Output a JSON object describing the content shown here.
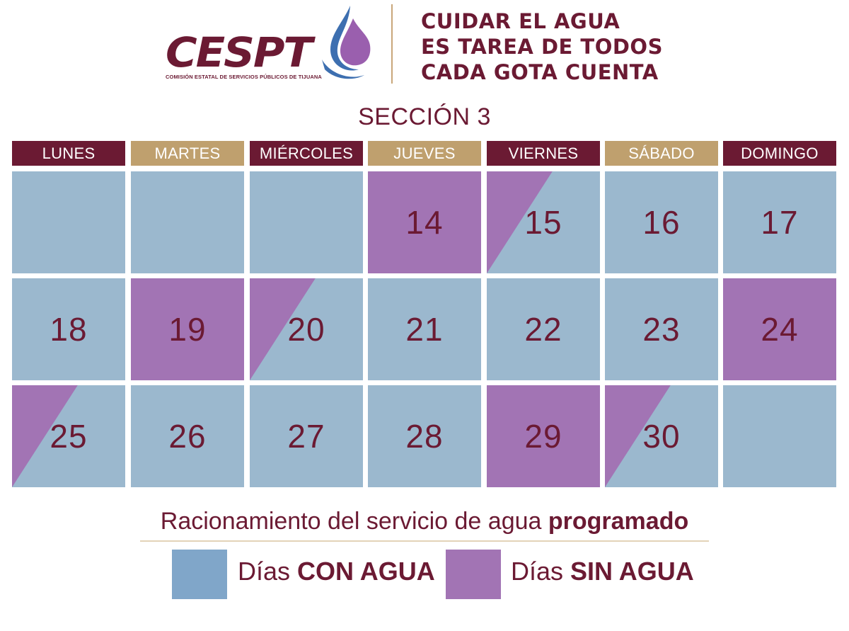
{
  "header": {
    "logo_text": "CESPT",
    "logo_subtitle": "COMISIÓN ESTATAL DE SERVICIOS PÚBLICOS DE TIJUANA",
    "slogan": [
      "CUIDAR EL AGUA",
      "ES TAREA DE TODOS",
      "CADA GOTA CUENTA"
    ]
  },
  "section_title": "SECCIÓN 3",
  "days": [
    {
      "label": "LUNES",
      "style": "dark"
    },
    {
      "label": "MARTES",
      "style": "gold"
    },
    {
      "label": "MIÉRCOLES",
      "style": "dark"
    },
    {
      "label": "JUEVES",
      "style": "gold"
    },
    {
      "label": "VIERNES",
      "style": "dark"
    },
    {
      "label": "SÁBADO",
      "style": "gold"
    },
    {
      "label": "DOMINGO",
      "style": "dark"
    }
  ],
  "calendar": [
    [
      {
        "day": "",
        "status": "con"
      },
      {
        "day": "",
        "status": "con"
      },
      {
        "day": "",
        "status": "con"
      },
      {
        "day": "14",
        "status": "sin"
      },
      {
        "day": "15",
        "status": "partial"
      },
      {
        "day": "16",
        "status": "con"
      },
      {
        "day": "17",
        "status": "con"
      }
    ],
    [
      {
        "day": "18",
        "status": "con"
      },
      {
        "day": "19",
        "status": "sin"
      },
      {
        "day": "20",
        "status": "partial"
      },
      {
        "day": "21",
        "status": "con"
      },
      {
        "day": "22",
        "status": "con"
      },
      {
        "day": "23",
        "status": "con"
      },
      {
        "day": "24",
        "status": "sin"
      }
    ],
    [
      {
        "day": "25",
        "status": "partial"
      },
      {
        "day": "26",
        "status": "con"
      },
      {
        "day": "27",
        "status": "con"
      },
      {
        "day": "28",
        "status": "con"
      },
      {
        "day": "29",
        "status": "sin"
      },
      {
        "day": "30",
        "status": "partial"
      },
      {
        "day": "",
        "status": "con"
      }
    ]
  ],
  "legend": {
    "title_prefix": "Racionamiento del servicio de agua ",
    "title_bold": "programado",
    "items": [
      {
        "prefix": "Días ",
        "bold": "CON AGUA",
        "color": "#80a6c9"
      },
      {
        "prefix": "Días ",
        "bold": "SIN AGUA",
        "color": "#a274b4"
      }
    ]
  },
  "colors": {
    "brand": "#6b1a33",
    "gold": "#bfa06e",
    "con_agua_cell": "#9bb8ce",
    "sin_agua_cell": "#a274b4"
  }
}
